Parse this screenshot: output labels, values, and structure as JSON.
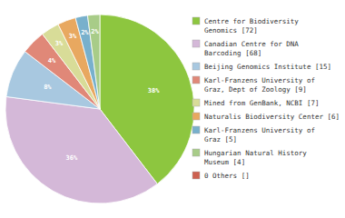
{
  "chart_data": {
    "type": "pie",
    "categories": [
      "Centre for Biodiversity\nGenomics [72]",
      "Canadian Centre for DNA\nBarcoding [68]",
      "Beijing Genomics Institute [15]",
      "Karl-Franzens University of\nGraz, Dept of Zoology [9]",
      "Mined from GenBank, NCBI [7]",
      "Naturalis Biodiversity Center [6]",
      "Karl-Franzens University of\nGraz [5]",
      "Hungarian Natural History\nMuseum [4]",
      "0 Others []"
    ],
    "values": [
      38,
      36,
      8,
      4,
      3,
      3,
      2,
      2,
      0
    ],
    "value_labels": [
      "38%",
      "36%",
      "8%",
      "4%",
      "3%",
      "3%",
      "2%",
      "2%",
      null
    ],
    "colors": [
      "#8dc63f",
      "#d4b8d8",
      "#a8c8e0",
      "#e08878",
      "#d8dc98",
      "#e8a860",
      "#78b0cc",
      "#a8cc88",
      "#cc6050"
    ],
    "data_labels": true,
    "legend": "right"
  }
}
